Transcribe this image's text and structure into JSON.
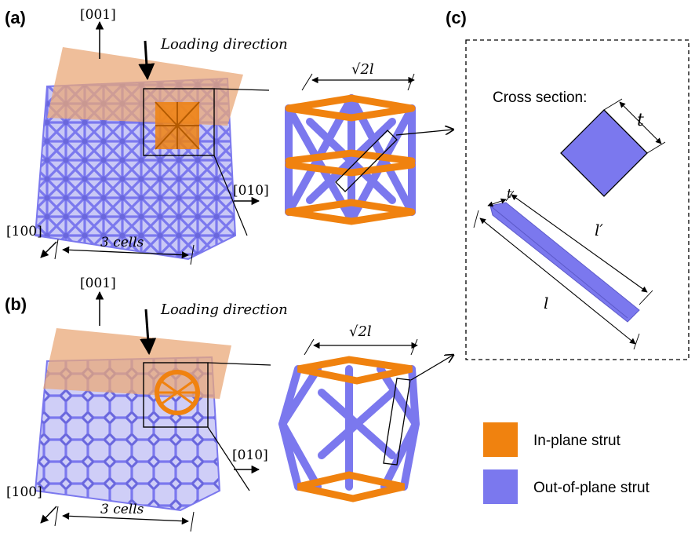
{
  "panels": {
    "a": {
      "label": "(a)",
      "direction_z": "[001]",
      "direction_y": "[010]",
      "direction_x": "[100]",
      "loading": "Loading direction",
      "cells": "3 cells",
      "width_label": "√2l"
    },
    "b": {
      "label": "(b)",
      "direction_z": "[001]",
      "direction_y": "[010]",
      "direction_x": "[100]",
      "loading": "Loading direction",
      "cells": "3 cells",
      "width_label": "√2l"
    },
    "c": {
      "label": "(c)",
      "cross_section": "Cross section:",
      "t_label": "t",
      "t_small": "t",
      "l_prime": "l′",
      "l_label": "l"
    }
  },
  "legend": {
    "items": [
      {
        "label": "In-plane strut",
        "color": "#f0820f"
      },
      {
        "label": "Out-of-plane strut",
        "color": "#7b78ee"
      }
    ]
  },
  "colors": {
    "orange": "#f0820f",
    "purple": "#7b78ee",
    "plane": "#e9a878"
  }
}
